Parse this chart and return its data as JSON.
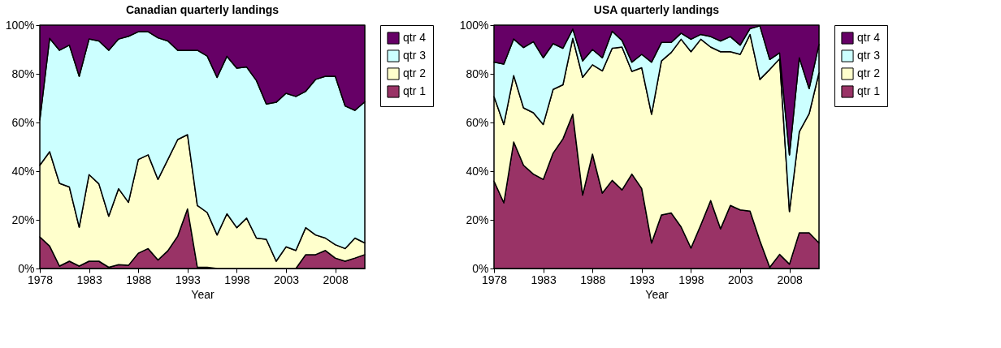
{
  "chart_data": [
    {
      "type": "area",
      "title": "Canadian quarterly landings",
      "xlabel": "Year",
      "stacked": true,
      "legend": "right",
      "x": [
        1978,
        1979,
        1980,
        1981,
        1982,
        1983,
        1984,
        1985,
        1986,
        1987,
        1988,
        1989,
        1990,
        1991,
        1992,
        1993,
        1994,
        1995,
        1996,
        1997,
        1998,
        1999,
        2000,
        2001,
        2002,
        2003,
        2004,
        2005,
        2006,
        2007,
        2008,
        2009,
        2010,
        2011
      ],
      "xlim": [
        1978,
        2011
      ],
      "xticks": [
        1978,
        1983,
        1988,
        1993,
        1998,
        2003,
        2008
      ],
      "ylim": [
        0,
        100
      ],
      "yticks": [
        {
          "value": 0,
          "label": "0%"
        },
        {
          "value": 20,
          "label": "20%"
        },
        {
          "value": 40,
          "label": "40%"
        },
        {
          "value": 60,
          "label": "60%"
        },
        {
          "value": 80,
          "label": "80%"
        },
        {
          "value": 100,
          "label": "100%"
        }
      ],
      "series": [
        {
          "name": "qtr 1",
          "color": "#993366",
          "values": [
            13,
            9.2,
            1,
            3,
            1,
            3,
            3,
            0.5,
            1.6,
            1.3,
            6.3,
            8.2,
            3.5,
            7.3,
            13.3,
            24.5,
            0.5,
            0.5,
            0,
            0,
            0,
            0,
            0,
            0,
            0,
            0,
            0,
            5.7,
            5.7,
            7.4,
            4.3,
            3,
            4.3,
            5.7
          ]
        },
        {
          "name": "qtr 2",
          "color": "#ffffcc",
          "values": [
            29.4,
            38.8,
            34,
            30.5,
            16,
            35.6,
            31.8,
            21,
            31.2,
            25.9,
            38.5,
            38.5,
            33.1,
            37.5,
            39.7,
            30.5,
            25.4,
            22.5,
            13.8,
            22.5,
            16.8,
            20.7,
            12.5,
            12,
            3,
            8.9,
            7.4,
            11.1,
            8.1,
            5.1,
            5.5,
            5.2,
            8.2,
            4.8
          ]
        },
        {
          "name": "qtr 3",
          "color": "#ccffff",
          "values": [
            18.6,
            46.6,
            54.7,
            58.3,
            62,
            55.7,
            58.7,
            68.2,
            61.5,
            68.2,
            52.5,
            50.6,
            58.2,
            48.7,
            36.7,
            34.7,
            63.8,
            64.3,
            64.7,
            64.7,
            65.5,
            62.1,
            64.7,
            55.6,
            65.3,
            63.1,
            63.3,
            56,
            63.9,
            66.5,
            69.2,
            58.6,
            52.5,
            58
          ]
        },
        {
          "name": "qtr 4",
          "color": "#660066",
          "values": [
            39,
            5.4,
            10.3,
            8.2,
            21,
            5.7,
            6.5,
            10.3,
            5.7,
            4.6,
            2.7,
            2.7,
            5.2,
            6.5,
            10.3,
            10.3,
            10.3,
            12.7,
            21.5,
            12.8,
            17.7,
            17.2,
            22.8,
            32.4,
            31.7,
            28,
            29.3,
            27.2,
            22.3,
            21,
            21,
            33.2,
            35,
            31.5
          ]
        }
      ]
    },
    {
      "type": "area",
      "title": "USA quarterly landings",
      "xlabel": "Year",
      "stacked": true,
      "legend": "right",
      "x": [
        1978,
        1979,
        1980,
        1981,
        1982,
        1983,
        1984,
        1985,
        1986,
        1987,
        1988,
        1989,
        1990,
        1991,
        1992,
        1993,
        1994,
        1995,
        1996,
        1997,
        1998,
        1999,
        2000,
        2001,
        2002,
        2003,
        2004,
        2005,
        2006,
        2007,
        2008,
        2009,
        2010,
        2011
      ],
      "xlim": [
        1978,
        2011
      ],
      "xticks": [
        1978,
        1983,
        1988,
        1993,
        1998,
        2003,
        2008
      ],
      "ylim": [
        0,
        100
      ],
      "yticks": [
        {
          "value": 0,
          "label": "0%"
        },
        {
          "value": 20,
          "label": "20%"
        },
        {
          "value": 40,
          "label": "40%"
        },
        {
          "value": 60,
          "label": "60%"
        },
        {
          "value": 80,
          "label": "80%"
        },
        {
          "value": 100,
          "label": "100%"
        }
      ],
      "series": [
        {
          "name": "qtr 1",
          "color": "#993366",
          "values": [
            35.9,
            27,
            52,
            42.4,
            38.8,
            36.6,
            47.4,
            53.3,
            63.4,
            30.2,
            47,
            31,
            36.2,
            32.3,
            38.8,
            32.9,
            10.5,
            22,
            22.8,
            17.1,
            8.4,
            17.9,
            27.9,
            16.3,
            25.9,
            24.1,
            23.6,
            11.4,
            0.5,
            5.8,
            1.8,
            14.7,
            14.7,
            10.5
          ]
        },
        {
          "name": "qtr 2",
          "color": "#ffffcc",
          "values": [
            34.8,
            32.2,
            27.3,
            23.6,
            25.2,
            22.6,
            26.2,
            22.2,
            31.2,
            48.4,
            36.7,
            50.2,
            54.3,
            58.7,
            42.2,
            49.6,
            52.9,
            63.3,
            66,
            77.1,
            80.7,
            76.3,
            63.1,
            72.8,
            63.2,
            63.9,
            72.6,
            66.3,
            81.3,
            80.4,
            21.6,
            41.5,
            48.9,
            69.9
          ]
        },
        {
          "name": "qtr 3",
          "color": "#ccffff",
          "values": [
            14.1,
            24.8,
            15,
            24.8,
            29.2,
            27.4,
            18.8,
            15,
            3.8,
            6.7,
            6.3,
            5.4,
            7,
            2.7,
            3.8,
            5.5,
            21.4,
            7.6,
            4.1,
            2.5,
            5.1,
            2,
            4.3,
            4.4,
            6.2,
            3.8,
            2.4,
            22,
            4.1,
            2.4,
            23.3,
            30.4,
            10.3,
            11.7
          ]
        },
        {
          "name": "qtr 4",
          "color": "#660066",
          "values": [
            15.2,
            16,
            5.7,
            9.2,
            6.8,
            13.4,
            7.6,
            9.5,
            1.6,
            14.7,
            10,
            13.4,
            2.5,
            6.3,
            15.2,
            12,
            15.2,
            7.1,
            7.1,
            3.3,
            5.8,
            3.8,
            4.7,
            6.5,
            4.7,
            8.2,
            1.4,
            0.3,
            14.1,
            11.4,
            53.3,
            13.4,
            26.1,
            7.9
          ]
        }
      ]
    }
  ]
}
